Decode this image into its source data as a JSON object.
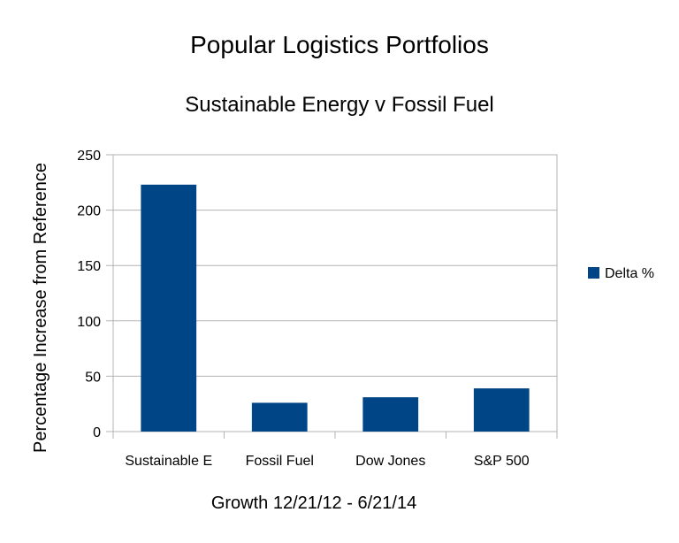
{
  "chart_data": {
    "type": "bar",
    "title": "Popular Logistics Portfolios",
    "subtitle": "Sustainable Energy v Fossil Fuel",
    "xlabel": "Growth 12/21/12 - 6/21/14",
    "ylabel": "Percentage Increase from Reference",
    "categories": [
      "Sustainable E",
      "Fossil Fuel",
      "Dow Jones",
      "S&P 500"
    ],
    "series": [
      {
        "name": "Delta %",
        "values": [
          223,
          26,
          31,
          39
        ],
        "color": "#004586"
      }
    ],
    "ylim": [
      0,
      250
    ],
    "yticks": [
      0,
      50,
      100,
      150,
      200,
      250
    ],
    "ytick_labels": [
      "0",
      "50",
      "100",
      "150",
      "200",
      "250"
    ],
    "grid": true,
    "legend_position": "right"
  }
}
